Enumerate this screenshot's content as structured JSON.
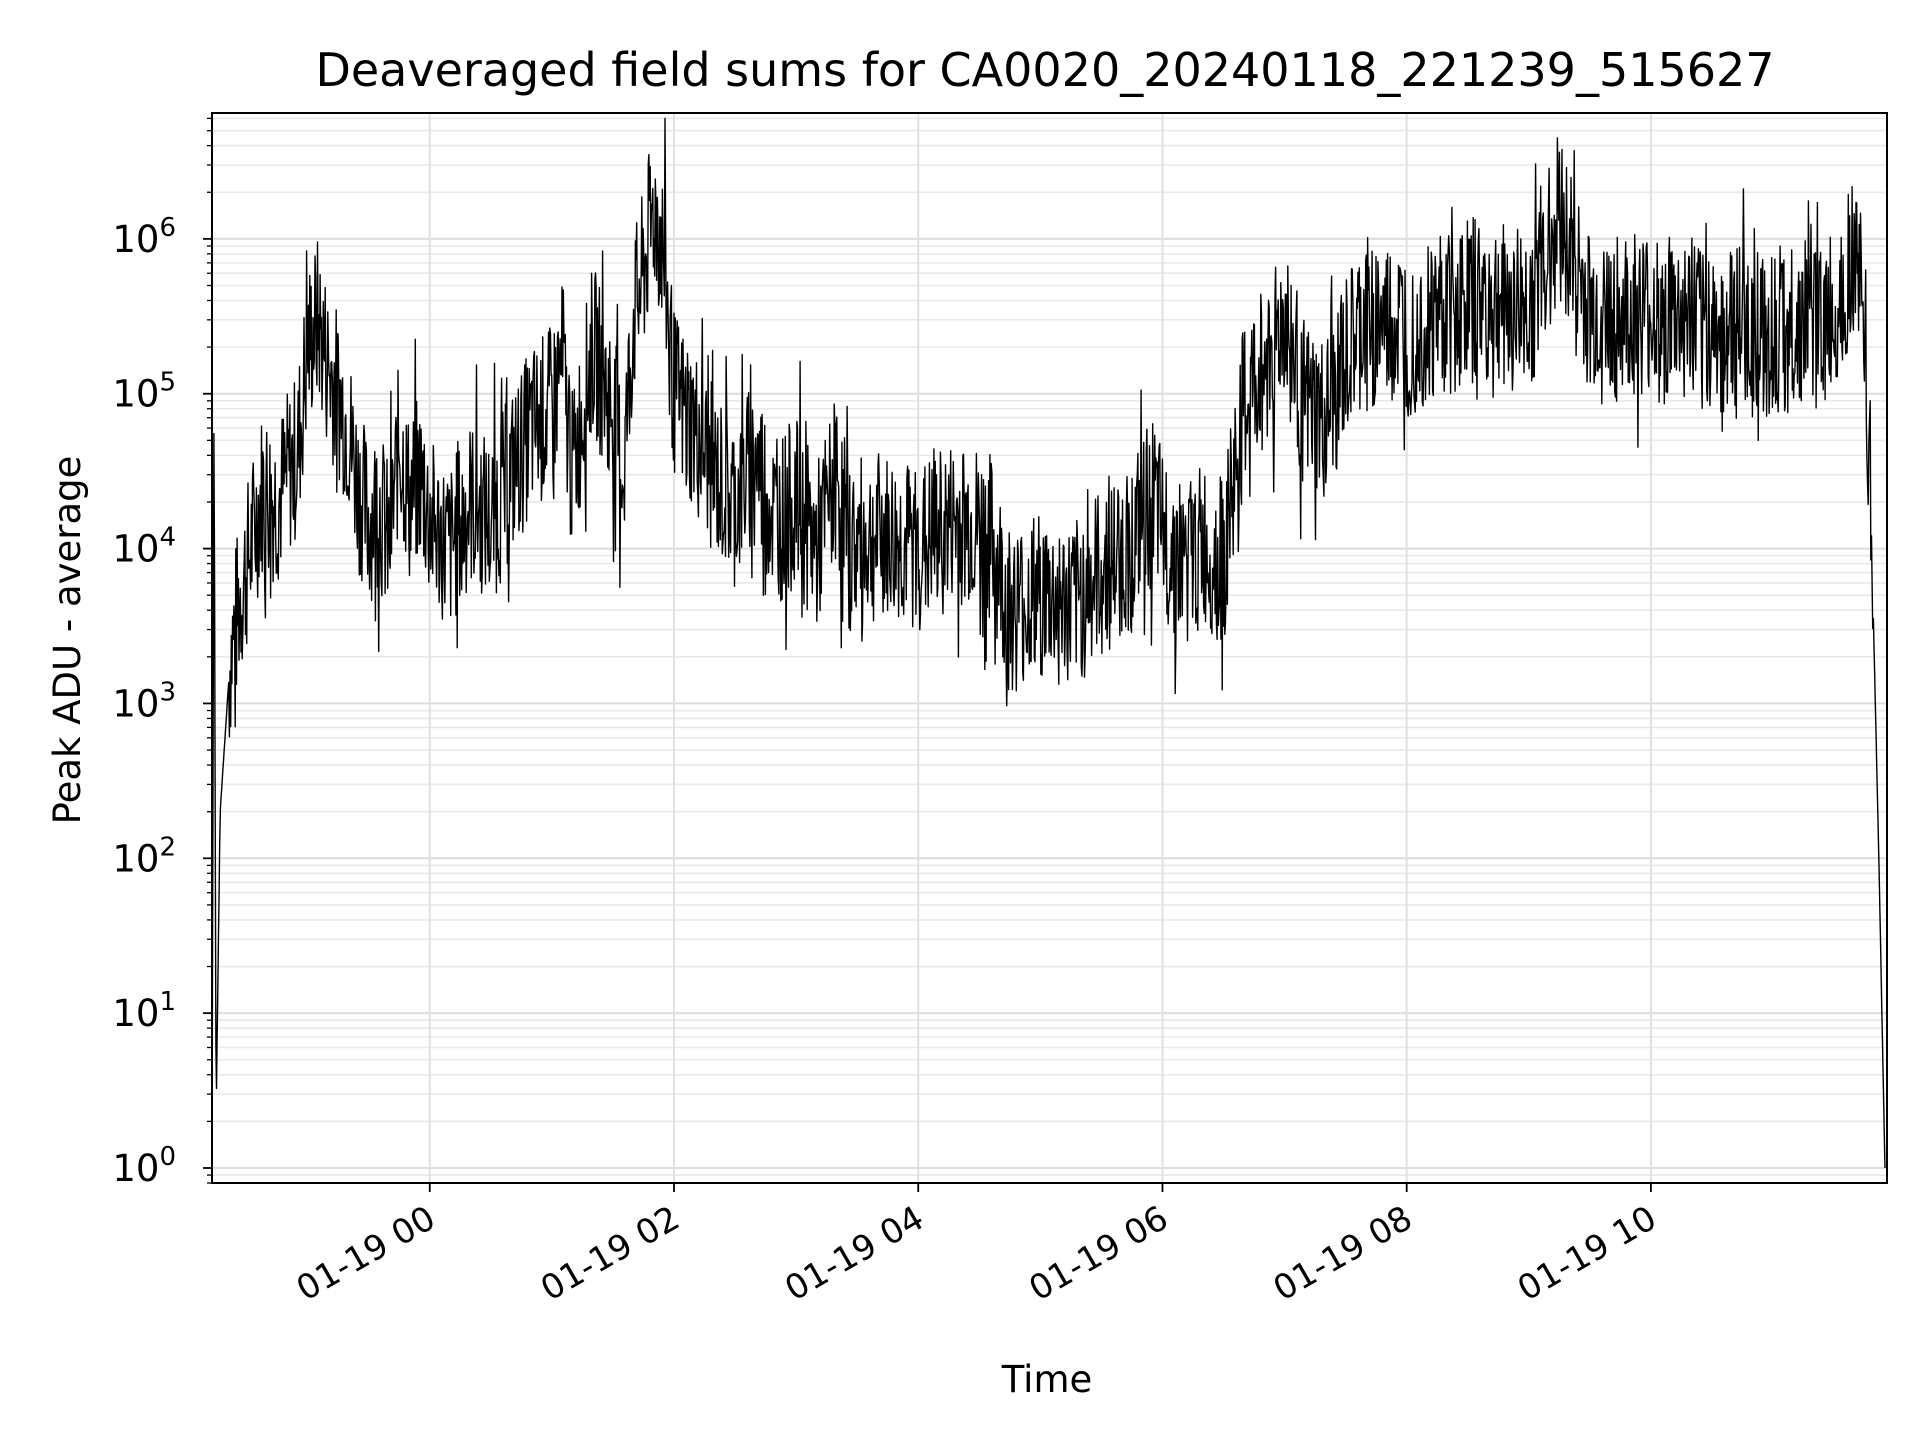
{
  "chart_data": {
    "type": "line",
    "title": "Deaveraged field sums for CA0020_20240118_221239_515627",
    "xlabel": "Time",
    "ylabel": "Peak ADU - average",
    "yscale": "log",
    "ylim": [
      0.8,
      6500000.0
    ],
    "xlim": [
      "2024-01-18 22:13",
      "2024-01-19 11:56"
    ],
    "grid": "major and minor",
    "line_color": "#000000",
    "x_ticks": [
      {
        "t": "2024-01-19 00:00",
        "label": "01-19 00"
      },
      {
        "t": "2024-01-19 02:00",
        "label": "01-19 02"
      },
      {
        "t": "2024-01-19 04:00",
        "label": "01-19 04"
      },
      {
        "t": "2024-01-19 06:00",
        "label": "01-19 06"
      },
      {
        "t": "2024-01-19 08:00",
        "label": "01-19 08"
      },
      {
        "t": "2024-01-19 10:00",
        "label": "01-19 10"
      }
    ],
    "y_ticks": [
      {
        "value": 1,
        "base": "10",
        "exp": "0"
      },
      {
        "value": 10,
        "base": "10",
        "exp": "1"
      },
      {
        "value": 100,
        "base": "10",
        "exp": "2"
      },
      {
        "value": 1000,
        "base": "10",
        "exp": "3"
      },
      {
        "value": 10000,
        "base": "10",
        "exp": "4"
      },
      {
        "value": 100000,
        "base": "10",
        "exp": "5"
      },
      {
        "value": 1000000,
        "base": "10",
        "exp": "6"
      }
    ],
    "series": [
      {
        "points": [
          [
            "2024-01-18 22:13",
            1
          ],
          [
            "2024-01-18 22:14",
            100000
          ],
          [
            "2024-01-18 22:15",
            2
          ],
          [
            "2024-01-18 22:17",
            200
          ],
          [
            "2024-01-18 22:22",
            2000
          ],
          [
            "2024-01-18 22:27",
            5000
          ],
          [
            "2024-01-18 22:32",
            10000
          ],
          [
            "2024-01-18 22:38",
            25000
          ],
          [
            "2024-01-18 22:45",
            20000
          ],
          [
            "2024-01-18 22:50",
            30000
          ],
          [
            "2024-01-18 22:55",
            40000
          ],
          [
            "2024-01-18 23:00",
            200000
          ],
          [
            "2024-01-18 23:05",
            300000
          ],
          [
            "2024-01-18 23:10",
            150000
          ],
          [
            "2024-01-18 23:15",
            100000
          ],
          [
            "2024-01-18 23:20",
            60000
          ],
          [
            "2024-01-18 23:25",
            25000
          ],
          [
            "2024-01-18 23:30",
            15000
          ],
          [
            "2024-01-18 23:35",
            20000
          ],
          [
            "2024-01-18 23:40",
            10000
          ],
          [
            "2024-01-18 23:45",
            50000
          ],
          [
            "2024-01-18 23:50",
            20000
          ],
          [
            "2024-01-18 23:55",
            30000
          ],
          [
            "2024-01-19 00:00",
            15000
          ],
          [
            "2024-01-19 00:10",
            10000
          ],
          [
            "2024-01-19 00:20",
            20000
          ],
          [
            "2024-01-19 00:30",
            15000
          ],
          [
            "2024-01-19 00:40",
            30000
          ],
          [
            "2024-01-19 00:50",
            60000
          ],
          [
            "2024-01-19 01:00",
            80000
          ],
          [
            "2024-01-19 01:05",
            150000
          ],
          [
            "2024-01-19 01:10",
            30000
          ],
          [
            "2024-01-19 01:20",
            200000
          ],
          [
            "2024-01-19 01:30",
            80000
          ],
          [
            "2024-01-19 01:35",
            30000
          ],
          [
            "2024-01-19 01:40",
            300000
          ],
          [
            "2024-01-19 01:45",
            600000
          ],
          [
            "2024-01-19 01:50",
            1600000
          ],
          [
            "2024-01-19 01:55",
            800000
          ],
          [
            "2024-01-19 02:00",
            100000
          ],
          [
            "2024-01-19 02:10",
            60000
          ],
          [
            "2024-01-19 02:20",
            30000
          ],
          [
            "2024-01-19 02:30",
            20000
          ],
          [
            "2024-01-19 02:40",
            40000
          ],
          [
            "2024-01-19 02:50",
            15000
          ],
          [
            "2024-01-19 03:00",
            20000
          ],
          [
            "2024-01-19 03:10",
            10000
          ],
          [
            "2024-01-19 03:20",
            30000
          ],
          [
            "2024-01-19 03:25",
            10000
          ],
          [
            "2024-01-19 03:40",
            12000
          ],
          [
            "2024-01-19 04:00",
            10000
          ],
          [
            "2024-01-19 04:20",
            15000
          ],
          [
            "2024-01-19 04:35",
            12000
          ],
          [
            "2024-01-19 04:45",
            4000
          ],
          [
            "2024-01-19 05:00",
            5000
          ],
          [
            "2024-01-19 05:15",
            4000
          ],
          [
            "2024-01-19 05:30",
            7000
          ],
          [
            "2024-01-19 05:45",
            10000
          ],
          [
            "2024-01-19 05:55",
            20000
          ],
          [
            "2024-01-19 06:00",
            12000
          ],
          [
            "2024-01-19 06:10",
            8000
          ],
          [
            "2024-01-19 06:20",
            10000
          ],
          [
            "2024-01-19 06:30",
            8000
          ],
          [
            "2024-01-19 06:40",
            80000
          ],
          [
            "2024-01-19 06:50",
            150000
          ],
          [
            "2024-01-19 07:00",
            300000
          ],
          [
            "2024-01-19 07:10",
            80000
          ],
          [
            "2024-01-19 07:20",
            60000
          ],
          [
            "2024-01-19 07:30",
            150000
          ],
          [
            "2024-01-19 07:40",
            300000
          ],
          [
            "2024-01-19 08:00",
            250000
          ],
          [
            "2024-01-19 08:30",
            400000
          ],
          [
            "2024-01-19 09:00",
            350000
          ],
          [
            "2024-01-19 09:15",
            1500000
          ],
          [
            "2024-01-19 09:30",
            300000
          ],
          [
            "2024-01-19 10:00",
            300000
          ],
          [
            "2024-01-19 10:30",
            250000
          ],
          [
            "2024-01-19 11:00",
            250000
          ],
          [
            "2024-01-19 11:30",
            300000
          ],
          [
            "2024-01-19 11:40",
            900000
          ],
          [
            "2024-01-19 11:45",
            300000
          ],
          [
            "2024-01-19 11:48",
            20000
          ],
          [
            "2024-01-19 11:52",
            100
          ],
          [
            "2024-01-19 11:55",
            1
          ]
        ],
        "noise_decades": 0.55,
        "noise_seed": 7
      }
    ]
  }
}
